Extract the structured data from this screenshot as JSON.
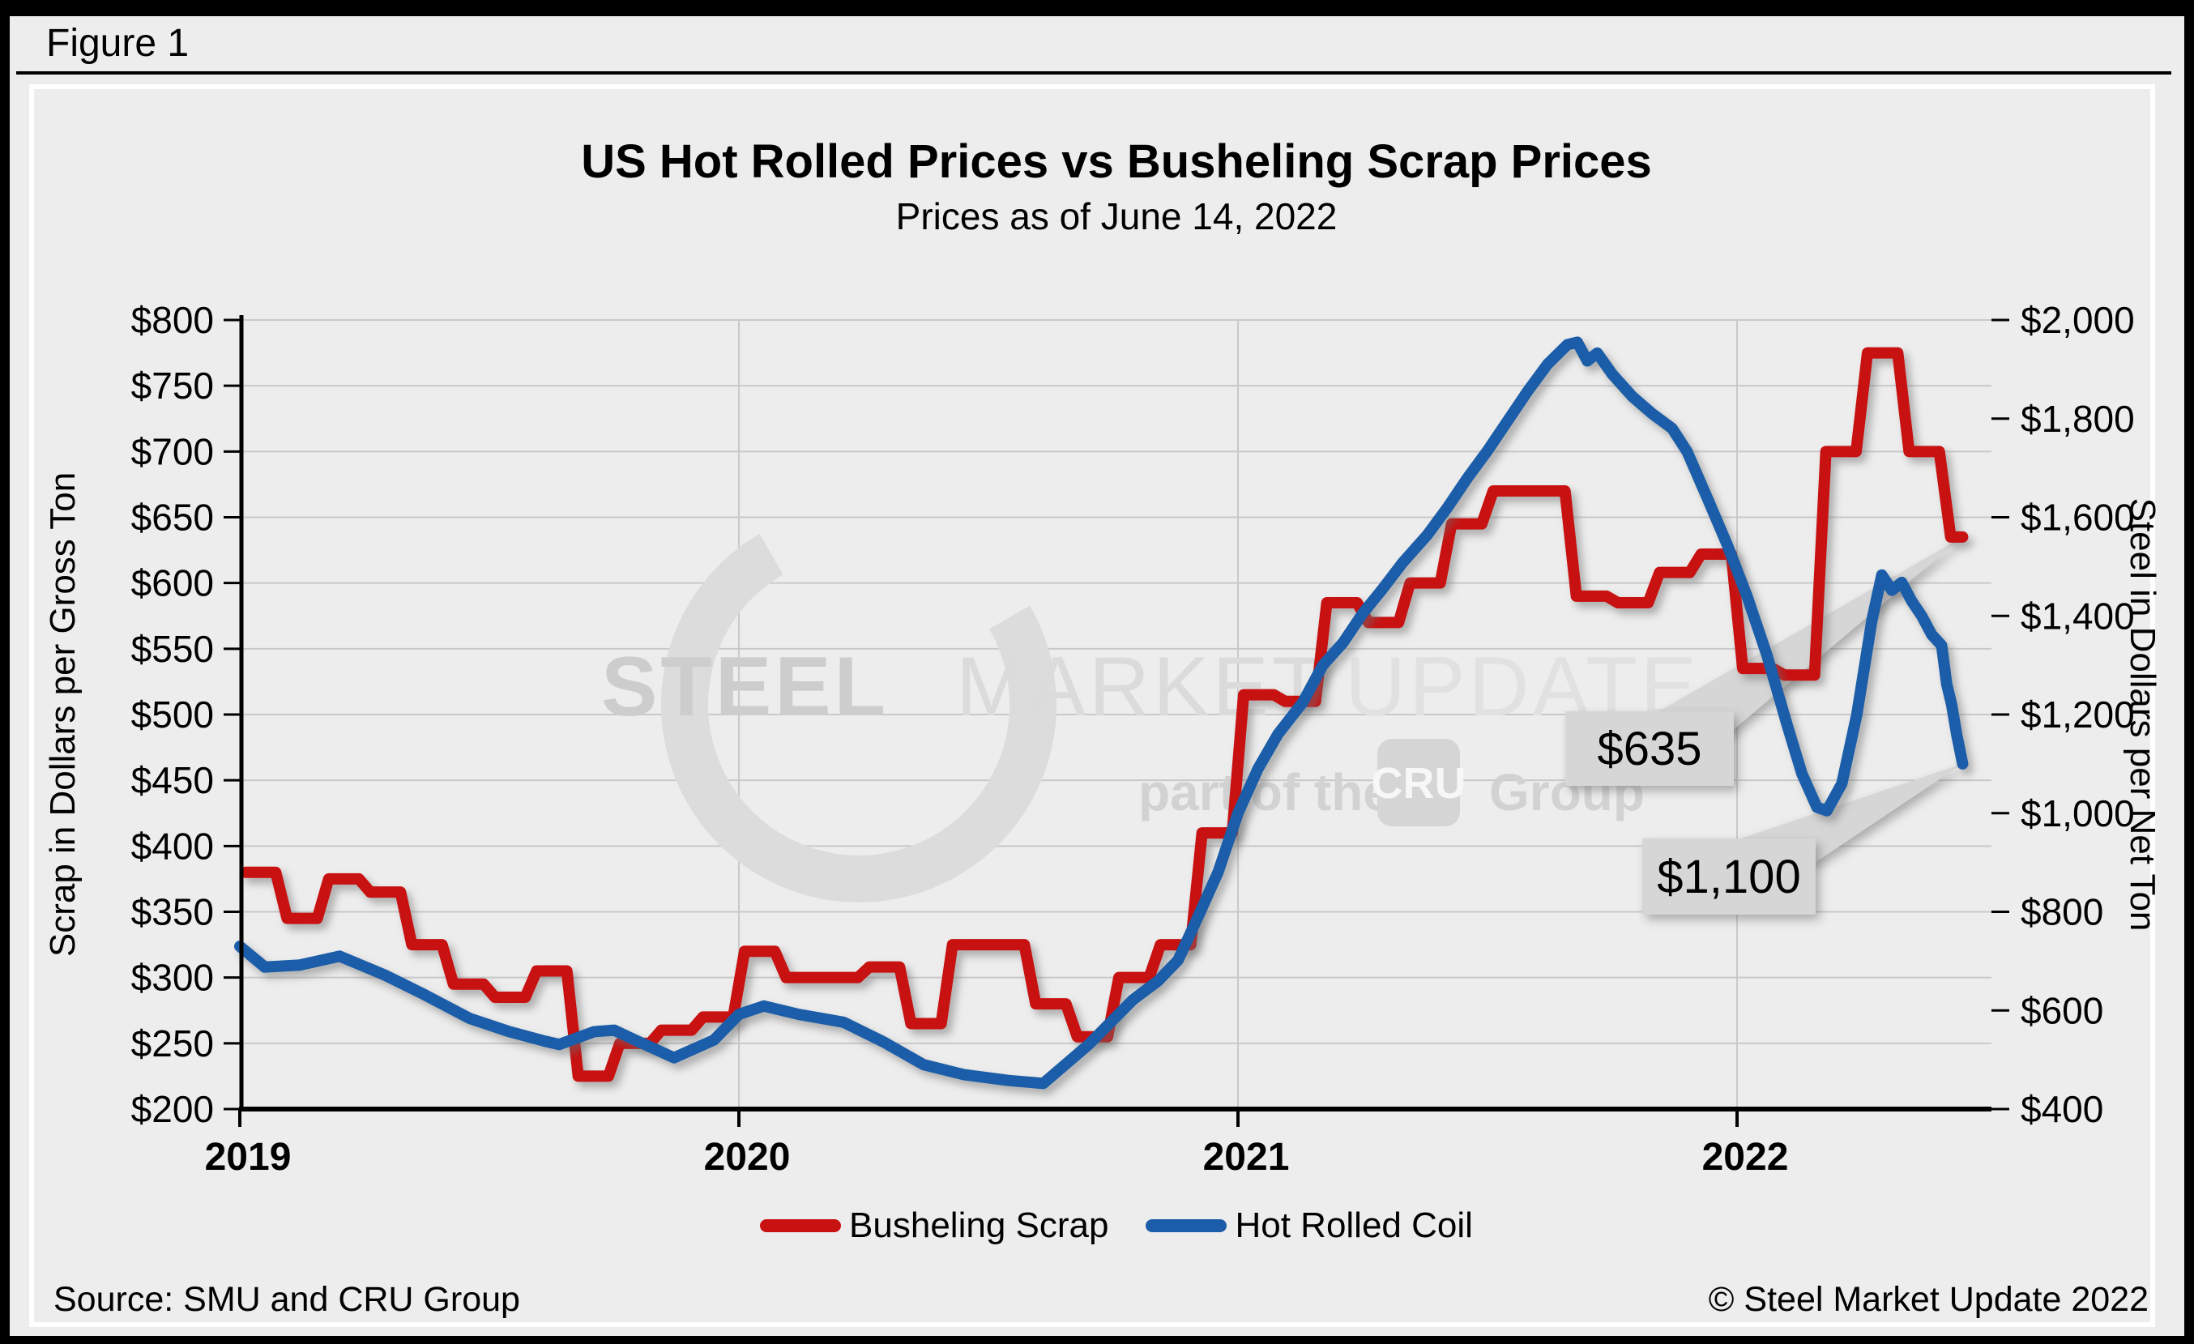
{
  "page": {
    "figure_label": "Figure 1"
  },
  "header": {
    "title": "US Hot Rolled Prices vs Busheling Scrap Prices",
    "subtitle": "Prices as of June 14, 2022"
  },
  "watermark": {
    "word1": "STEEL",
    "word2": "MARKET",
    "word3": "UPDATE",
    "tagline_prefix": "part of the",
    "tagline_logo": "CRU",
    "tagline_suffix": "Group"
  },
  "legend": {
    "items": [
      {
        "label": "Busheling Scrap",
        "color": "#c81111"
      },
      {
        "label": "Hot Rolled Coil",
        "color": "#1b5da8"
      }
    ]
  },
  "footer": {
    "source": "Source: SMU and CRU Group",
    "copyright": "© Steel Market Update 2022"
  },
  "annotations": [
    {
      "label": "$635",
      "series": "Busheling Scrap",
      "axis": "left",
      "value": 635
    },
    {
      "label": "$1,100",
      "series": "Hot Rolled Coil",
      "axis": "right",
      "value": 1100
    }
  ],
  "chart_data": {
    "type": "line",
    "title": "US Hot Rolled Prices vs Busheling Scrap Prices",
    "subtitle": "Prices as of June 14, 2022",
    "grid": true,
    "legend_position": "bottom",
    "x_axis": {
      "tick_labels": [
        "2019",
        "2020",
        "2021",
        "2022"
      ],
      "tick_years": [
        2019,
        2020,
        2021,
        2022
      ],
      "range_years": [
        2019,
        2022.51
      ]
    },
    "y_axis_left": {
      "label": "Scrap in Dollars per Gross Ton",
      "range": [
        200,
        800
      ],
      "tick_step": 50,
      "tick_values": [
        800,
        750,
        700,
        650,
        600,
        550,
        500,
        450,
        400,
        350,
        300,
        250,
        200
      ],
      "tick_labels": [
        "$800",
        "$750",
        "$700",
        "$650",
        "$600",
        "$550",
        "$500",
        "$450",
        "$400",
        "$350",
        "$300",
        "$250",
        "$200"
      ]
    },
    "y_axis_right": {
      "label": "Steel in Dollars per Net Ton",
      "range": [
        400,
        2000
      ],
      "tick_step": 200,
      "tick_values": [
        2000,
        1800,
        1600,
        1400,
        1200,
        1000,
        800,
        600,
        400
      ],
      "tick_labels": [
        "$2,000",
        "$1,800",
        "$1,600",
        "$1,400",
        "$1,200",
        "$1,000",
        "$800",
        "$600",
        "$400"
      ]
    },
    "series": [
      {
        "name": "Busheling Scrap",
        "axis": "left",
        "color": "#c81111",
        "style": "monthly-step",
        "start_month": "2019-01",
        "end_date": "2022-06-14",
        "values": [
          380,
          345,
          375,
          365,
          325,
          295,
          285,
          305,
          225,
          250,
          260,
          270,
          320,
          300,
          300,
          308,
          265,
          325,
          325,
          280,
          255,
          300,
          325,
          410,
          515,
          510,
          585,
          570,
          600,
          645,
          670,
          670,
          590,
          585,
          608,
          622,
          535,
          530,
          700,
          775,
          700,
          635
        ]
      },
      {
        "name": "Hot Rolled Coil",
        "axis": "right",
        "color": "#1b5da8",
        "style": "weekly-line",
        "points": [
          [
            2019.0,
            730
          ],
          [
            2019.05,
            688
          ],
          [
            2019.12,
            692
          ],
          [
            2019.2,
            710
          ],
          [
            2019.29,
            672
          ],
          [
            2019.37,
            632
          ],
          [
            2019.46,
            584
          ],
          [
            2019.54,
            557
          ],
          [
            2019.61,
            538
          ],
          [
            2019.64,
            531
          ],
          [
            2019.71,
            557
          ],
          [
            2019.75,
            560
          ],
          [
            2019.79,
            541
          ],
          [
            2019.87,
            504
          ],
          [
            2019.95,
            540
          ],
          [
            2020.0,
            592
          ],
          [
            2020.05,
            609
          ],
          [
            2020.12,
            592
          ],
          [
            2020.21,
            576
          ],
          [
            2020.29,
            536
          ],
          [
            2020.37,
            490
          ],
          [
            2020.45,
            470
          ],
          [
            2020.54,
            458
          ],
          [
            2020.61,
            452
          ],
          [
            2020.7,
            530
          ],
          [
            2020.79,
            622
          ],
          [
            2020.84,
            660
          ],
          [
            2020.88,
            702
          ],
          [
            2020.92,
            790
          ],
          [
            2020.96,
            880
          ],
          [
            2021.0,
            1000
          ],
          [
            2021.04,
            1090
          ],
          [
            2021.08,
            1160
          ],
          [
            2021.13,
            1225
          ],
          [
            2021.17,
            1300
          ],
          [
            2021.21,
            1345
          ],
          [
            2021.25,
            1405
          ],
          [
            2021.29,
            1455
          ],
          [
            2021.33,
            1508
          ],
          [
            2021.38,
            1565
          ],
          [
            2021.42,
            1620
          ],
          [
            2021.46,
            1680
          ],
          [
            2021.5,
            1735
          ],
          [
            2021.54,
            1795
          ],
          [
            2021.58,
            1855
          ],
          [
            2021.62,
            1910
          ],
          [
            2021.66,
            1950
          ],
          [
            2021.68,
            1955
          ],
          [
            2021.7,
            1917
          ],
          [
            2021.72,
            1933
          ],
          [
            2021.75,
            1890
          ],
          [
            2021.79,
            1845
          ],
          [
            2021.83,
            1810
          ],
          [
            2021.87,
            1780
          ],
          [
            2021.9,
            1733
          ],
          [
            2021.94,
            1640
          ],
          [
            2021.98,
            1545
          ],
          [
            2022.02,
            1440
          ],
          [
            2022.06,
            1320
          ],
          [
            2022.1,
            1180
          ],
          [
            2022.13,
            1080
          ],
          [
            2022.16,
            1012
          ],
          [
            2022.18,
            1005
          ],
          [
            2022.21,
            1060
          ],
          [
            2022.24,
            1200
          ],
          [
            2022.27,
            1390
          ],
          [
            2022.29,
            1483
          ],
          [
            2022.31,
            1452
          ],
          [
            2022.33,
            1468
          ],
          [
            2022.35,
            1430
          ],
          [
            2022.37,
            1400
          ],
          [
            2022.39,
            1362
          ],
          [
            2022.41,
            1340
          ],
          [
            2022.42,
            1262
          ],
          [
            2022.43,
            1220
          ],
          [
            2022.44,
            1160
          ],
          [
            2022.452,
            1100
          ]
        ]
      }
    ]
  }
}
